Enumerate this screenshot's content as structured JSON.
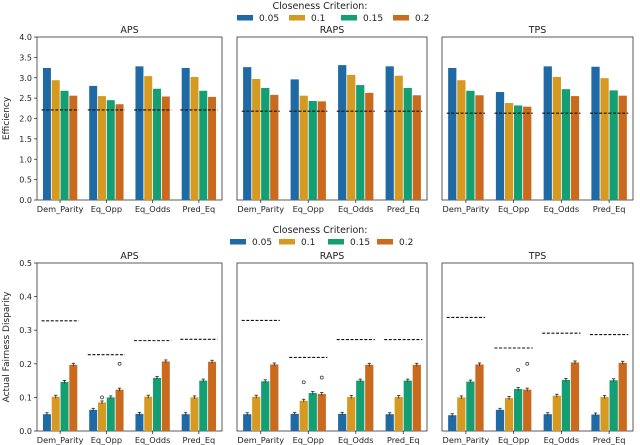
{
  "colors": {
    "0.05": "#1f6aa5",
    "0.1": "#d69a23",
    "0.15": "#139e73",
    "0.2": "#c96a1f"
  },
  "chart_data": [
    {
      "type": "bar",
      "legend_title": "Closeness Criterion:",
      "legend_labels": [
        "0.05",
        "0.1",
        "0.15",
        "0.2"
      ],
      "ylabel": "Efficiency",
      "ylim": [
        0,
        4.0
      ],
      "yticks": [
        "0.0",
        "0.5",
        "1.0",
        "1.5",
        "2.0",
        "2.5",
        "3.0",
        "3.5",
        "4.0"
      ],
      "categories": [
        "Dem_Parity",
        "Eq_Opp",
        "Eq_Odds",
        "Pred_Eq"
      ],
      "panels": [
        {
          "title": "APS",
          "series": [
            {
              "name": "0.05",
              "values": [
                3.24,
                2.8,
                3.28,
                3.24
              ]
            },
            {
              "name": "0.1",
              "values": [
                2.94,
                2.55,
                3.04,
                3.02
              ]
            },
            {
              "name": "0.15",
              "values": [
                2.68,
                2.45,
                2.73,
                2.68
              ]
            },
            {
              "name": "0.2",
              "values": [
                2.56,
                2.35,
                2.54,
                2.53
              ]
            }
          ],
          "baseline": [
            2.21,
            2.21,
            2.21,
            2.21
          ]
        },
        {
          "title": "RAPS",
          "series": [
            {
              "name": "0.05",
              "values": [
                3.26,
                2.96,
                3.31,
                3.28
              ]
            },
            {
              "name": "0.1",
              "values": [
                2.97,
                2.56,
                3.07,
                3.05
              ]
            },
            {
              "name": "0.15",
              "values": [
                2.75,
                2.43,
                2.82,
                2.75
              ]
            },
            {
              "name": "0.2",
              "values": [
                2.58,
                2.42,
                2.63,
                2.57
              ]
            }
          ],
          "baseline": [
            2.18,
            2.18,
            2.18,
            2.18
          ]
        },
        {
          "title": "TPS",
          "series": [
            {
              "name": "0.05",
              "values": [
                3.24,
                2.65,
                3.28,
                3.27
              ]
            },
            {
              "name": "0.1",
              "values": [
                2.94,
                2.38,
                3.02,
                2.99
              ]
            },
            {
              "name": "0.15",
              "values": [
                2.68,
                2.32,
                2.72,
                2.69
              ]
            },
            {
              "name": "0.2",
              "values": [
                2.57,
                2.29,
                2.55,
                2.56
              ]
            }
          ],
          "baseline": [
            2.13,
            2.13,
            2.13,
            2.13
          ]
        }
      ]
    },
    {
      "type": "bar",
      "legend_title": "Closeness Criterion:",
      "legend_labels": [
        "0.05",
        "0.1",
        "0.15",
        "0.2"
      ],
      "ylabel": "Actual Fairness Disparity",
      "ylim": [
        0,
        0.5
      ],
      "yticks": [
        "0.0",
        "0.1",
        "0.2",
        "0.3",
        "0.4",
        "0.5"
      ],
      "categories": [
        "Dem_Parity",
        "Eq_Opp",
        "Eq_Odds",
        "Pred_Eq"
      ],
      "panels": [
        {
          "title": "APS",
          "series": [
            {
              "name": "0.05",
              "values": [
                0.05,
                0.063,
                0.051,
                0.05
              ]
            },
            {
              "name": "0.1",
              "values": [
                0.102,
                0.085,
                0.102,
                0.1
              ]
            },
            {
              "name": "0.15",
              "values": [
                0.146,
                0.1,
                0.158,
                0.15
              ]
            },
            {
              "name": "0.2",
              "values": [
                0.197,
                0.123,
                0.207,
                0.206
              ]
            }
          ],
          "baseline": [
            0.328,
            0.227,
            0.269,
            0.273
          ],
          "outliers": [
            {
              "cat": 1,
              "series": 1,
              "value": 0.1
            },
            {
              "cat": 1,
              "series": 3,
              "value": 0.2
            }
          ]
        },
        {
          "title": "RAPS",
          "series": [
            {
              "name": "0.05",
              "values": [
                0.05,
                0.051,
                0.051,
                0.05
              ]
            },
            {
              "name": "0.1",
              "values": [
                0.102,
                0.09,
                0.101,
                0.101
              ]
            },
            {
              "name": "0.15",
              "values": [
                0.148,
                0.113,
                0.15,
                0.15
              ]
            },
            {
              "name": "0.2",
              "values": [
                0.198,
                0.11,
                0.197,
                0.197
              ]
            }
          ],
          "baseline": [
            0.329,
            0.219,
            0.272,
            0.272
          ],
          "outliers": [
            {
              "cat": 1,
              "series": 1,
              "value": 0.145
            },
            {
              "cat": 1,
              "series": 3,
              "value": 0.159
            }
          ]
        },
        {
          "title": "TPS",
          "series": [
            {
              "name": "0.05",
              "values": [
                0.047,
                0.063,
                0.05,
                0.049
              ]
            },
            {
              "name": "0.1",
              "values": [
                0.1,
                0.098,
                0.105,
                0.101
              ]
            },
            {
              "name": "0.15",
              "values": [
                0.147,
                0.125,
                0.152,
                0.151
              ]
            },
            {
              "name": "0.2",
              "values": [
                0.198,
                0.123,
                0.204,
                0.203
              ]
            }
          ],
          "baseline": [
            0.338,
            0.247,
            0.291,
            0.287
          ],
          "outliers": [
            {
              "cat": 1,
              "series": 2,
              "value": 0.182
            },
            {
              "cat": 1,
              "series": 3,
              "value": 0.2
            }
          ]
        }
      ]
    }
  ]
}
